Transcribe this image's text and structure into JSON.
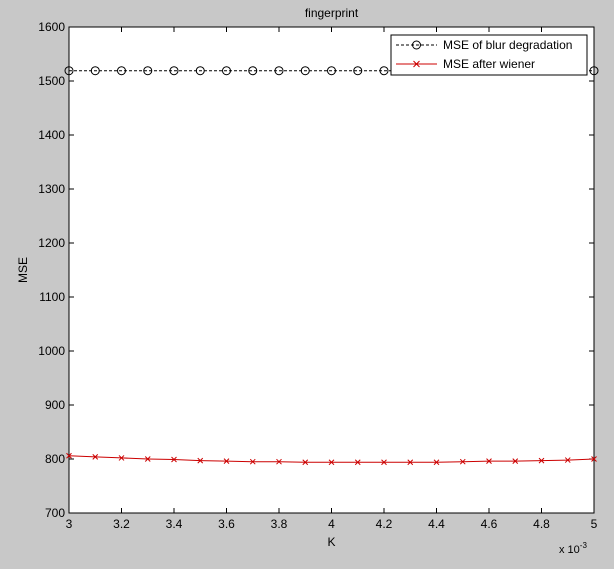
{
  "chart_data": {
    "type": "line",
    "title": "fingerprint",
    "xlabel": "K",
    "ylabel": "MSE",
    "x_multiplier_base": "x 10",
    "x_multiplier_exp": "-3",
    "xlim": [
      3,
      5
    ],
    "ylim": [
      700,
      1600
    ],
    "x_ticks": [
      "3",
      "3.2",
      "3.4",
      "3.6",
      "3.8",
      "4",
      "4.2",
      "4.4",
      "4.6",
      "4.8",
      "5"
    ],
    "y_ticks": [
      "700",
      "800",
      "900",
      "1000",
      "1100",
      "1200",
      "1300",
      "1400",
      "1500",
      "1600"
    ],
    "grid": false,
    "legend_position": "top-right",
    "x": [
      3.0,
      3.1,
      3.2,
      3.3,
      3.4,
      3.5,
      3.6,
      3.7,
      3.8,
      3.9,
      4.0,
      4.1,
      4.2,
      4.3,
      4.4,
      4.5,
      4.6,
      4.7,
      4.8,
      4.9,
      5.0
    ],
    "series": [
      {
        "name": "MSE of blur degradation",
        "color": "#000000",
        "line_style": "dashed",
        "marker": "circle",
        "values": [
          1519,
          1519,
          1519,
          1519,
          1519,
          1519,
          1519,
          1519,
          1519,
          1519,
          1519,
          1519,
          1519,
          1519,
          1519,
          1519,
          1519,
          1519,
          1519,
          1519,
          1519
        ]
      },
      {
        "name": "MSE after wiener",
        "color": "#cc0000",
        "line_style": "solid",
        "marker": "x",
        "values": [
          806,
          804,
          802,
          800,
          799,
          797,
          796,
          795,
          795,
          794,
          794,
          794,
          794,
          794,
          794,
          795,
          796,
          796,
          797,
          798,
          800
        ]
      }
    ]
  }
}
